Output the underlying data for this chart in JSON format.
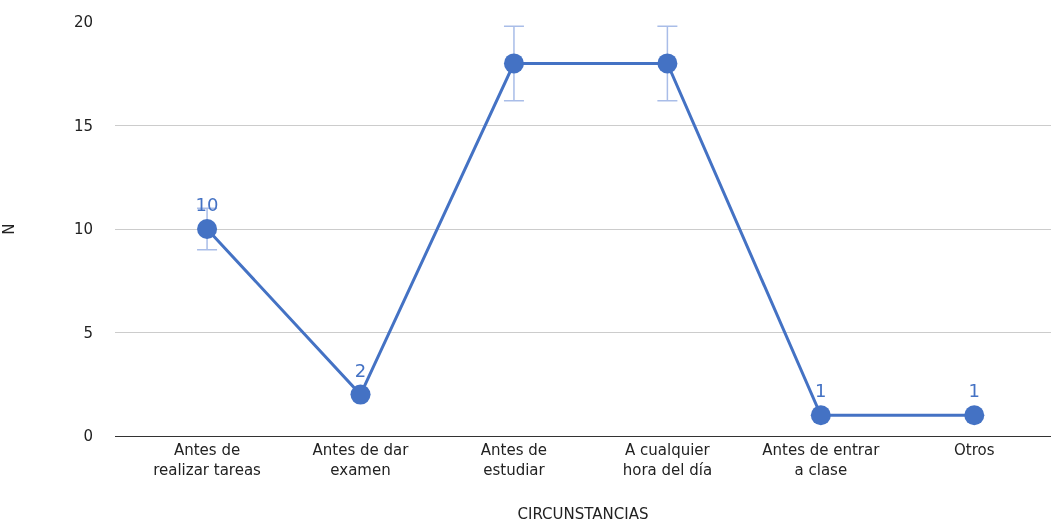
{
  "chart_data": {
    "type": "line",
    "categories": [
      "Antes de\nrealizar tareas",
      "Antes de dar\nexamen",
      "Antes de\nestudiar",
      "A cualquier\nhora del día",
      "Antes de entrar\na clase",
      "Otros"
    ],
    "series": [
      {
        "color": "#4472c4",
        "values": [
          10,
          2,
          18,
          18,
          1,
          1
        ],
        "errors": [
          1,
          null,
          1.8,
          1.8,
          null,
          null
        ],
        "value_labels": [
          "10",
          "2",
          null,
          null,
          "1",
          "1"
        ]
      }
    ],
    "xlabel": "CIRCUNSTANCIAS",
    "ylabel": "N",
    "ylim": [
      0,
      20
    ],
    "yticks": [
      0,
      5,
      10,
      15,
      20
    ],
    "grid": "y",
    "marker": "circle",
    "line_style": "solid"
  }
}
